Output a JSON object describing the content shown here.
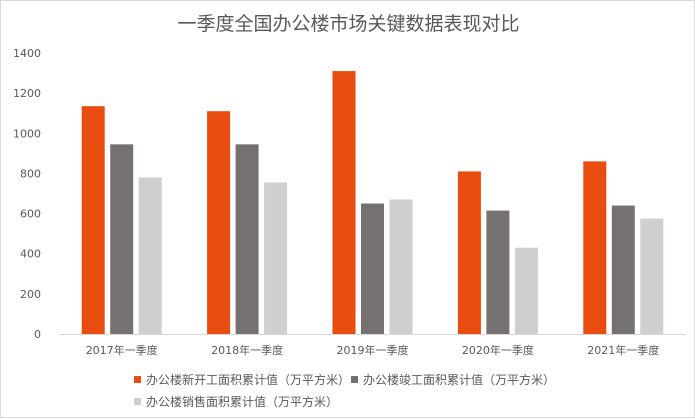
{
  "chart_data": {
    "type": "bar",
    "title": "一季度全国办公楼市场关键数据表现对比",
    "categories": [
      "2017年一季度",
      "2018年一季度",
      "2019年一季度",
      "2020年一季度",
      "2021年一季度"
    ],
    "series": [
      {
        "name": "办公楼新开工面积累计值（万平方米）",
        "color": "#e84c0e",
        "values": [
          1135,
          1110,
          1310,
          810,
          860
        ]
      },
      {
        "name": "办公楼竣工面积累计值（万平方米）",
        "color": "#767171",
        "values": [
          945,
          945,
          650,
          615,
          640
        ]
      },
      {
        "name": "办公楼销售面积累计值（万平方米）",
        "color": "#d0cece",
        "values": [
          780,
          755,
          670,
          430,
          575
        ]
      }
    ],
    "yticks": [
      0,
      200,
      400,
      600,
      800,
      1000,
      1200,
      1400
    ],
    "ylim": [
      0,
      1400
    ],
    "xlabel": "",
    "ylabel": "",
    "grid": false,
    "legend_position": "bottom"
  }
}
